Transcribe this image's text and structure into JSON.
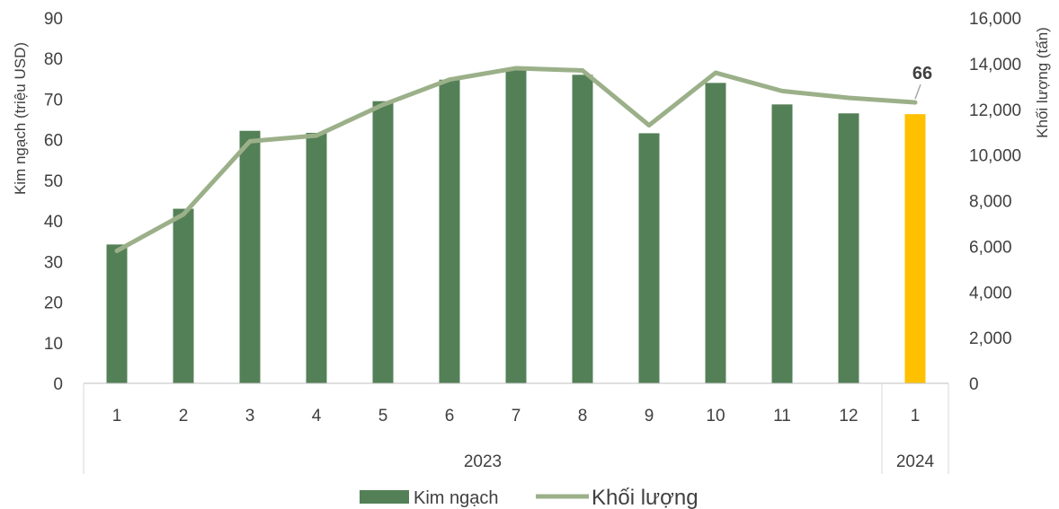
{
  "chart_data": {
    "type": "bar",
    "categories": [
      "1",
      "2",
      "3",
      "4",
      "5",
      "6",
      "7",
      "8",
      "9",
      "10",
      "11",
      "12",
      "1"
    ],
    "groups": [
      {
        "label": "2023",
        "from": 0,
        "to": 11
      },
      {
        "label": "2024",
        "from": 12,
        "to": 12
      }
    ],
    "series": [
      {
        "name": "Kim ngạch",
        "axis": "left",
        "type": "bar",
        "color": "#548057",
        "values": [
          34.2,
          43.0,
          62.2,
          61.7,
          69.5,
          74.8,
          77.5,
          76.0,
          61.6,
          74.0,
          68.7,
          66.5,
          66.3
        ]
      },
      {
        "name": "Khối lượng",
        "axis": "right",
        "type": "line",
        "color": "#9BB089",
        "values": [
          5800,
          7400,
          10600,
          10850,
          12200,
          13300,
          13800,
          13700,
          11300,
          13600,
          12800,
          12500,
          12300
        ]
      }
    ],
    "highlight": {
      "index": 12,
      "color": "#FFC000",
      "label": "66"
    },
    "ylabel": "Kim ngạch (triệu USD)",
    "y2label": "Khối lượng (tấn)",
    "ylim": [
      0,
      90
    ],
    "y2lim": [
      0,
      16000
    ],
    "yticks": [
      "0",
      "10",
      "20",
      "30",
      "40",
      "50",
      "60",
      "70",
      "80",
      "90"
    ],
    "y2ticks": [
      "0",
      "2,000",
      "4,000",
      "6,000",
      "8,000",
      "10,000",
      "12,000",
      "14,000",
      "16,000"
    ],
    "legend": {
      "position": "bottom",
      "items": [
        "Kim ngạch",
        "Khối lượng"
      ]
    },
    "grid": false
  }
}
